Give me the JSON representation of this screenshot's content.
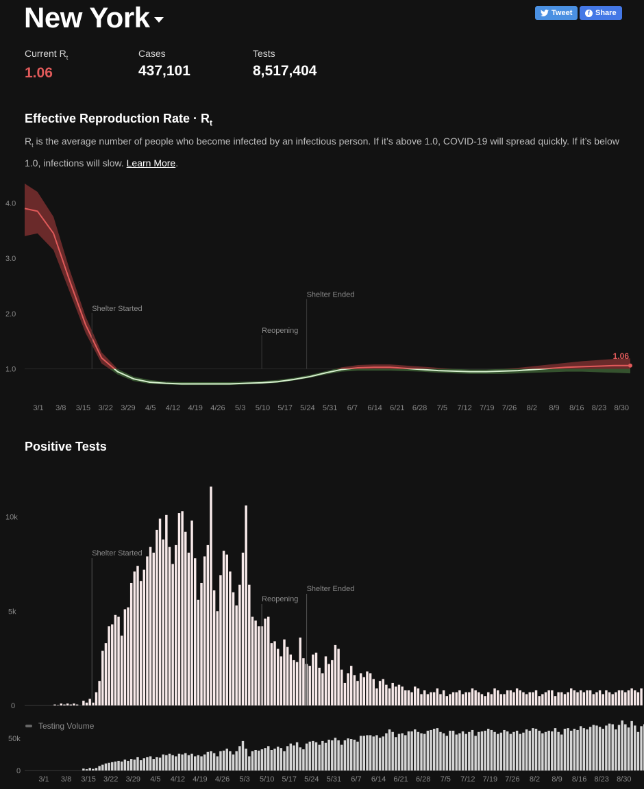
{
  "header": {
    "title": "New York",
    "tweet_label": "Tweet",
    "share_label": "Share"
  },
  "stats": [
    {
      "label": "Current R",
      "label_sub": "t",
      "value": "1.06"
    },
    {
      "label": "Cases",
      "label_sub": "",
      "value": "437,101"
    },
    {
      "label": "Tests",
      "label_sub": "",
      "value": "8,517,404"
    }
  ],
  "rt_section": {
    "title": "Effective Reproduction Rate · R",
    "title_sub": "t",
    "desc_sub": "t",
    "desc_main": " is the average number of people who become infected by an infectious person. If it’s above 1.0, COVID-19 will spread quickly. If it’s below 1.0, infections will slow. ",
    "desc_prefix": "R",
    "learn_more": "Learn More",
    "desc_end": "."
  },
  "tests_section": {
    "title": "Positive Tests"
  },
  "colors": {
    "red": "#e05a5a",
    "green": "#6fa36a",
    "band_red": "#7a2f2f",
    "band_green": "#3a5a32",
    "bar": "#f8eaea",
    "vol_bar": "#d6d6d6",
    "grid": "#2e2e2e",
    "tick": "#8a8a8a"
  },
  "chart_data": [
    {
      "type": "line",
      "name": "rt",
      "x_ticks": [
        "3/1",
        "3/8",
        "3/15",
        "3/22",
        "3/29",
        "4/5",
        "4/12",
        "4/19",
        "4/26",
        "5/3",
        "5/10",
        "5/17",
        "5/24",
        "5/31",
        "6/7",
        "6/14",
        "6/21",
        "6/28",
        "7/5",
        "7/12",
        "7/19",
        "7/26",
        "8/2",
        "8/9",
        "8/16",
        "8/23",
        "8/30"
      ],
      "y_ticks": [
        "4.0",
        "3.0",
        "2.0",
        "1.0"
      ],
      "ylim": [
        0.55,
        4.35
      ],
      "day_range": [
        1,
        190
      ],
      "points_day": [
        1,
        5,
        10,
        15,
        20,
        25,
        30,
        35,
        40,
        45,
        50,
        55,
        60,
        65,
        70,
        75,
        80,
        85,
        90,
        95,
        100,
        105,
        110,
        115,
        120,
        125,
        130,
        135,
        140,
        145,
        150,
        155,
        160,
        165,
        170,
        175,
        180,
        185,
        190
      ],
      "rt": [
        3.9,
        3.85,
        3.45,
        2.6,
        1.8,
        1.2,
        0.95,
        0.82,
        0.76,
        0.74,
        0.73,
        0.73,
        0.73,
        0.73,
        0.74,
        0.75,
        0.77,
        0.81,
        0.86,
        0.93,
        0.99,
        1.02,
        1.03,
        1.03,
        1.01,
        0.99,
        0.97,
        0.96,
        0.95,
        0.95,
        0.96,
        0.97,
        0.99,
        1.01,
        1.03,
        1.04,
        1.05,
        1.06,
        1.06
      ],
      "low": [
        3.4,
        3.45,
        3.15,
        2.4,
        1.65,
        1.1,
        0.9,
        0.78,
        0.73,
        0.72,
        0.71,
        0.71,
        0.71,
        0.71,
        0.72,
        0.73,
        0.75,
        0.79,
        0.84,
        0.9,
        0.95,
        0.97,
        0.97,
        0.97,
        0.96,
        0.95,
        0.93,
        0.92,
        0.91,
        0.91,
        0.91,
        0.92,
        0.93,
        0.94,
        0.95,
        0.95,
        0.94,
        0.93,
        0.92
      ],
      "high": [
        4.35,
        4.2,
        3.75,
        2.8,
        1.95,
        1.3,
        1.0,
        0.86,
        0.8,
        0.77,
        0.76,
        0.76,
        0.76,
        0.76,
        0.77,
        0.78,
        0.8,
        0.84,
        0.89,
        0.96,
        1.03,
        1.07,
        1.08,
        1.08,
        1.06,
        1.04,
        1.02,
        1.0,
        0.99,
        0.99,
        1.0,
        1.02,
        1.05,
        1.08,
        1.11,
        1.14,
        1.16,
        1.18,
        1.19
      ],
      "current_label": "1.06",
      "annotations": [
        {
          "label": "Shelter Started",
          "day": 22,
          "value": 2.05
        },
        {
          "label": "Reopening",
          "day": 75,
          "value": 1.65
        },
        {
          "label": "Shelter Ended",
          "day": 89,
          "value": 2.3
        }
      ]
    },
    {
      "type": "bar",
      "name": "positive_tests",
      "y_ticks": [
        "10k",
        "5k",
        "0"
      ],
      "ylim": [
        0,
        11800
      ],
      "day_range": [
        1,
        190
      ],
      "x_ticks": [
        "3/1",
        "3/8",
        "3/15",
        "3/22",
        "3/29",
        "4/5",
        "4/12",
        "4/19",
        "4/26",
        "5/3",
        "5/10",
        "5/17",
        "5/24",
        "5/31",
        "6/7",
        "6/14",
        "6/21",
        "6/28",
        "7/5",
        "7/12",
        "7/19",
        "7/26",
        "8/2",
        "8/9",
        "8/16",
        "8/23",
        "8/30"
      ],
      "start_day": 1,
      "values": [
        0,
        0,
        0,
        0,
        0,
        0,
        0,
        0,
        0,
        50,
        20,
        100,
        50,
        100,
        50,
        100,
        50,
        0,
        250,
        150,
        350,
        150,
        700,
        1300,
        2900,
        3300,
        4200,
        4300,
        4800,
        4700,
        3700,
        5100,
        5200,
        6500,
        7100,
        7400,
        6600,
        7200,
        7900,
        8400,
        8100,
        9300,
        9900,
        8800,
        10100,
        8400,
        7500,
        8500,
        10200,
        10300,
        9200,
        8100,
        9800,
        7800,
        5600,
        6500,
        7900,
        8500,
        11600,
        6100,
        5000,
        6900,
        8200,
        8000,
        7100,
        6000,
        5300,
        6400,
        8100,
        10600,
        6400,
        4700,
        4500,
        4200,
        4200,
        4600,
        4700,
        3300,
        3400,
        3000,
        2600,
        3500,
        3100,
        2700,
        2400,
        2300,
        3600,
        2500,
        2200,
        2100,
        2700,
        2800,
        2000,
        1700,
        2600,
        2200,
        2400,
        3200,
        3000,
        1900,
        1200,
        1700,
        2100,
        1600,
        1300,
        1700,
        1500,
        1800,
        1700,
        1400,
        900,
        1300,
        1400,
        1100,
        900,
        1200,
        1000,
        1100,
        1000,
        800,
        800,
        700,
        1000,
        900,
        600,
        800,
        600,
        700,
        700,
        900,
        600,
        800,
        500,
        600,
        700,
        700,
        800,
        600,
        700,
        700,
        900,
        800,
        700,
        600,
        500,
        700,
        600,
        900,
        800,
        600,
        600,
        800,
        800,
        700,
        900,
        800,
        700,
        600,
        700,
        700,
        800,
        500,
        600,
        700,
        800,
        800,
        500,
        700,
        700,
        600,
        700,
        900,
        800,
        700,
        800,
        700,
        800,
        800,
        600,
        700,
        800,
        600,
        800,
        700,
        600,
        700,
        800,
        800,
        700,
        800,
        900,
        800,
        700,
        900
      ]
    },
    {
      "type": "bar",
      "name": "testing_volume",
      "legend": "Testing Volume",
      "y_ticks": [
        "50k",
        "0"
      ],
      "ylim": [
        0,
        80000
      ],
      "start_day": 1,
      "values": [
        0,
        0,
        0,
        0,
        0,
        0,
        0,
        0,
        0,
        0,
        0,
        0,
        0,
        0,
        0,
        0,
        0,
        0,
        3000,
        2000,
        4000,
        2500,
        4000,
        7000,
        9000,
        11000,
        12000,
        13000,
        14000,
        15000,
        14000,
        17000,
        15000,
        18000,
        17000,
        21000,
        16000,
        19000,
        21000,
        22000,
        18000,
        21000,
        20000,
        25000,
        24000,
        26000,
        24000,
        22000,
        26000,
        25000,
        27000,
        24000,
        26000,
        22000,
        24000,
        22000,
        25000,
        29000,
        30000,
        27000,
        22000,
        30000,
        31000,
        34000,
        30000,
        25000,
        30000,
        38000,
        46000,
        34000,
        22000,
        30000,
        32000,
        31000,
        33000,
        35000,
        38000,
        32000,
        34000,
        37000,
        35000,
        30000,
        38000,
        42000,
        39000,
        44000,
        36000,
        33000,
        42000,
        45000,
        46000,
        44000,
        40000,
        46000,
        43000,
        48000,
        47000,
        51000,
        47000,
        40000,
        47000,
        50000,
        49000,
        48000,
        45000,
        54000,
        54000,
        55000,
        55000,
        53000,
        55000,
        51000,
        53000,
        58000,
        64000,
        60000,
        52000,
        57000,
        58000,
        55000,
        61000,
        61000,
        64000,
        60000,
        58000,
        57000,
        62000,
        63000,
        65000,
        66000,
        60000,
        58000,
        54000,
        62000,
        62000,
        56000,
        58000,
        61000,
        57000,
        60000,
        63000,
        54000,
        60000,
        61000,
        62000,
        65000,
        63000,
        60000,
        57000,
        59000,
        63000,
        61000,
        57000,
        60000,
        62000,
        57000,
        59000,
        64000,
        62000,
        66000,
        65000,
        62000,
        58000,
        60000,
        62000,
        61000,
        66000,
        60000,
        56000,
        65000,
        66000,
        62000,
        65000,
        63000,
        69000,
        66000,
        64000,
        68000,
        71000,
        70000,
        68000,
        65000,
        70000,
        73000,
        72000,
        64000,
        71000,
        78000,
        72000,
        67000,
        77000,
        70000,
        60000,
        69000,
        72000,
        75000,
        71000,
        78000,
        80000,
        69000,
        72000,
        76000
      ]
    }
  ]
}
